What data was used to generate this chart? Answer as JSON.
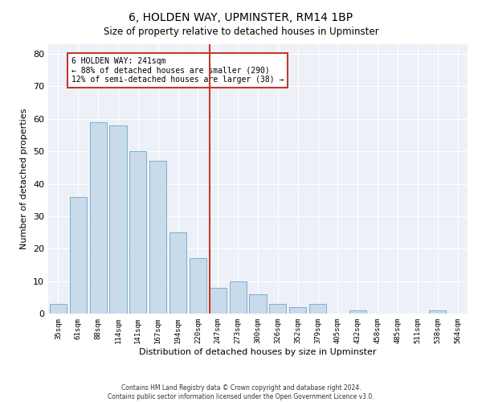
{
  "title": "6, HOLDEN WAY, UPMINSTER, RM14 1BP",
  "subtitle": "Size of property relative to detached houses in Upminster",
  "xlabel": "Distribution of detached houses by size in Upminster",
  "ylabel": "Number of detached properties",
  "bar_labels": [
    "35sqm",
    "61sqm",
    "88sqm",
    "114sqm",
    "141sqm",
    "167sqm",
    "194sqm",
    "220sqm",
    "247sqm",
    "273sqm",
    "300sqm",
    "326sqm",
    "352sqm",
    "379sqm",
    "405sqm",
    "432sqm",
    "458sqm",
    "485sqm",
    "511sqm",
    "538sqm",
    "564sqm"
  ],
  "bar_values": [
    3,
    36,
    59,
    58,
    50,
    47,
    25,
    17,
    8,
    10,
    6,
    3,
    2,
    3,
    0,
    1,
    0,
    0,
    0,
    1,
    0
  ],
  "bar_color": "#c9daea",
  "bar_edge_color": "#7ab0d4",
  "vline_color": "#c0392b",
  "annotation_title": "6 HOLDEN WAY: 241sqm",
  "annotation_line1": "← 88% of detached houses are smaller (290)",
  "annotation_line2": "12% of semi-detached houses are larger (38) →",
  "annotation_box_color": "#c0392b",
  "ylim": [
    0,
    83
  ],
  "yticks": [
    0,
    10,
    20,
    30,
    40,
    50,
    60,
    70,
    80
  ],
  "footer1": "Contains HM Land Registry data © Crown copyright and database right 2024.",
  "footer2": "Contains public sector information licensed under the Open Government Licence v3.0.",
  "background_color": "#edf1f7"
}
